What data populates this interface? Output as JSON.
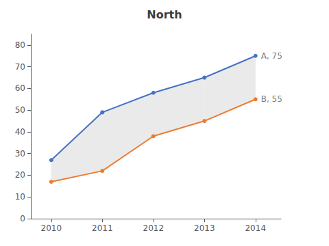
{
  "chart_data": {
    "type": "line",
    "title": "North",
    "x": [
      2010,
      2011,
      2012,
      2013,
      2014
    ],
    "series": [
      {
        "color": "#4472C4",
        "marker": "circle",
        "values": [
          27,
          49,
          58,
          65,
          75
        ]
      },
      {
        "color": "#ED7D31",
        "marker": "circle",
        "values": [
          17,
          22,
          38,
          45,
          55
        ]
      }
    ],
    "fill_between": {
      "color": "#EAEAEA"
    },
    "annotations": [
      {
        "text": "A, 75",
        "x": 2014,
        "y": 75
      },
      {
        "text": "B, 55",
        "x": 2014,
        "y": 55
      }
    ],
    "xlim": [
      2009.6,
      2014.5
    ],
    "xticks": [
      2010,
      2011,
      2012,
      2013,
      2014
    ],
    "ylim": [
      0,
      85
    ],
    "yticks": [
      0,
      10,
      20,
      30,
      40,
      50,
      60,
      70,
      80
    ],
    "grid": false
  }
}
